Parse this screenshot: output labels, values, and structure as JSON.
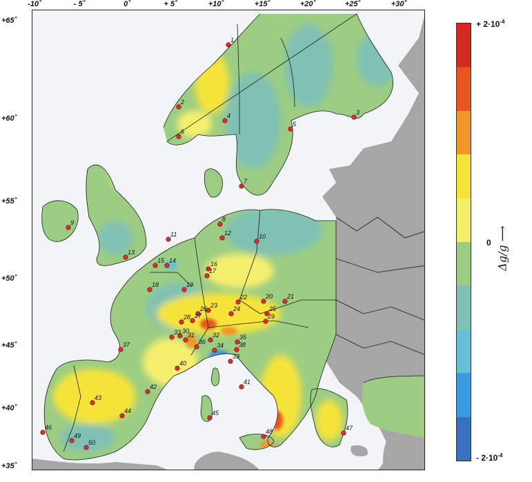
{
  "map": {
    "lon_ticks": [
      "-10˚",
      "- 5˚",
      "0˚",
      "+ 5˚",
      "+10˚",
      "+15˚",
      "+20˚",
      "+25˚",
      "+30˚"
    ],
    "lat_ticks": [
      "+65˚",
      "+60˚",
      "+55˚",
      "+50˚",
      "+45˚",
      "+40˚",
      "+35˚"
    ],
    "colors": {
      "sea": "#f2f5f7",
      "no_data_land": "#a6a6a6",
      "border": "#1a1a1a",
      "station": "#d83030"
    },
    "stations": [
      "1",
      "2",
      "3",
      "4",
      "5",
      "6",
      "7",
      "8",
      "9",
      "10",
      "11",
      "12",
      "13",
      "14",
      "15",
      "16",
      "17",
      "18",
      "19",
      "20",
      "21",
      "22",
      "23",
      "24",
      "25",
      "26",
      "27",
      "28",
      "29",
      "30",
      "31",
      "32",
      "33",
      "34",
      "35",
      "36",
      "37",
      "38",
      "39",
      "40",
      "41",
      "42",
      "43",
      "44",
      "45",
      "46",
      "47",
      "48",
      "49",
      "50"
    ]
  },
  "legend": {
    "top_label": "+ 2·10",
    "top_exp": "-4",
    "middle_label": "0",
    "bottom_label": "- 2·10",
    "bottom_exp": "-4",
    "axis_label": "Δg/g ⟶",
    "colors": [
      "#d42a1e",
      "#e8561f",
      "#f0962a",
      "#f6e43a",
      "#f6ef6e",
      "#9ccd83",
      "#80c1b4",
      "#66bfd6",
      "#3b9be0",
      "#3a6fc0"
    ]
  }
}
